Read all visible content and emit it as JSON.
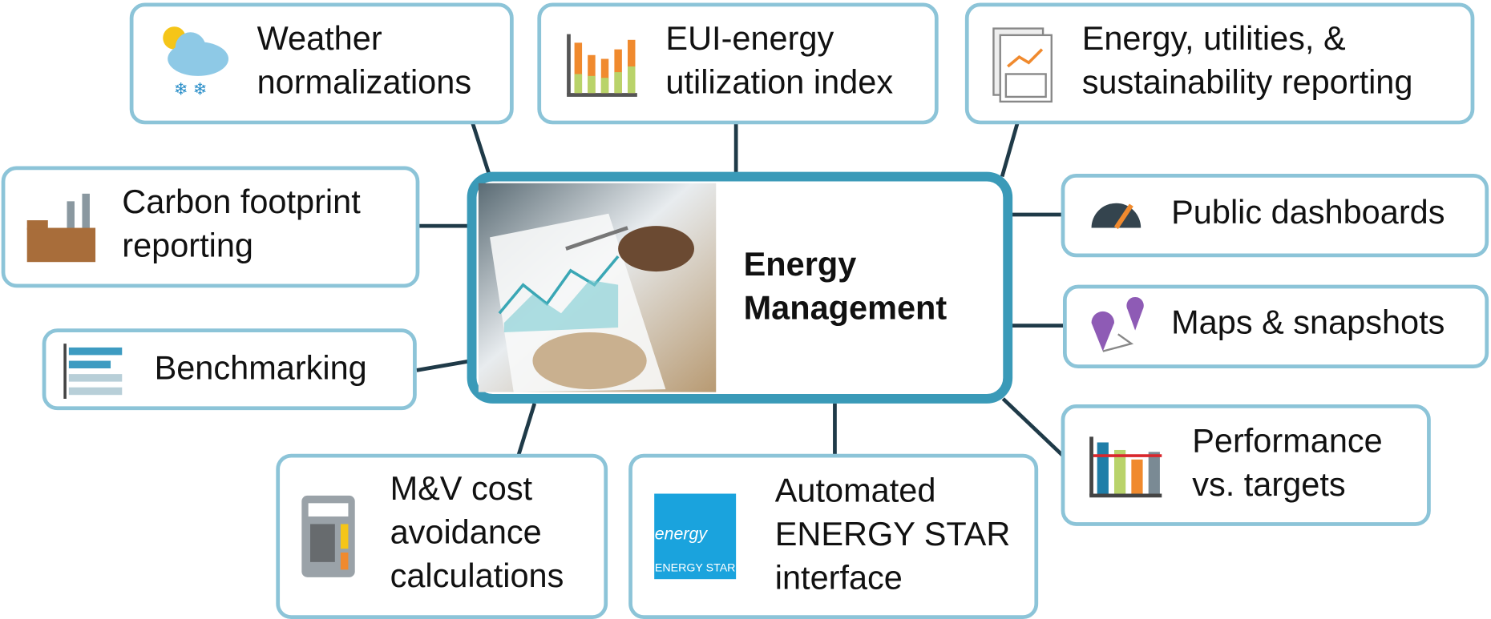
{
  "center": {
    "title": [
      "Energy",
      "Management"
    ]
  },
  "nodes": [
    {
      "label": [
        "Weather",
        "normalizations"
      ]
    },
    {
      "label": [
        "EUI-energy",
        "utilization index"
      ]
    },
    {
      "label": [
        "Energy, utilities, &",
        "sustainability reporting"
      ]
    },
    {
      "label": [
        "Carbon footprint",
        "reporting"
      ]
    },
    {
      "label": [
        "Benchmarking"
      ]
    },
    {
      "label": [
        "M&V cost",
        "avoidance",
        "calculations"
      ]
    },
    {
      "label": [
        "Automated",
        "ENERGY STAR",
        "interface"
      ]
    },
    {
      "label": [
        "Public dashboards"
      ]
    },
    {
      "label": [
        "Maps & snapshots"
      ]
    },
    {
      "label": [
        "Performance",
        "vs. targets"
      ]
    }
  ],
  "logo": {
    "script": "energy",
    "text": "ENERGY STAR"
  }
}
